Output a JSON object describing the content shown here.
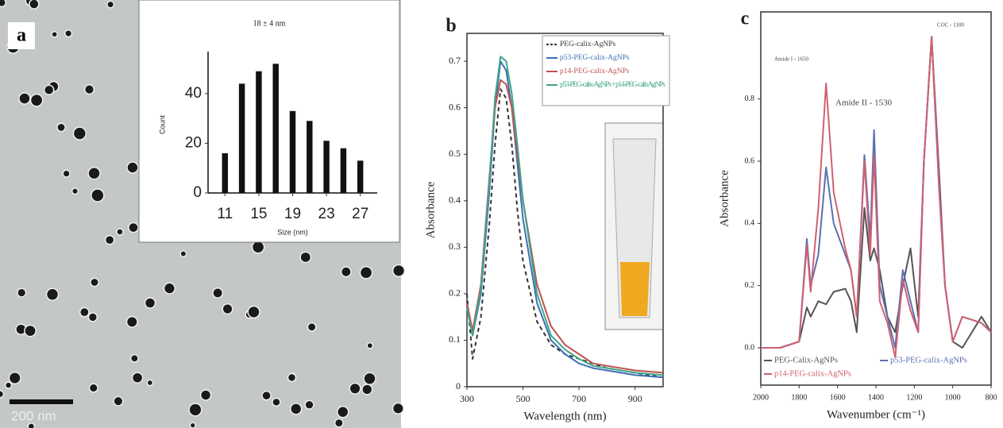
{
  "image": {
    "panel_label": "a",
    "scale_bar": "200 nm"
  },
  "chart_data": [
    {
      "type": "bar",
      "title": "18 ± 4 nm",
      "x": [
        11,
        13,
        15,
        17,
        19,
        21,
        23,
        25,
        27
      ],
      "values": [
        16,
        44,
        49,
        52,
        33,
        29,
        21,
        18,
        13
      ],
      "color": "#111111",
      "xlim": [
        9,
        29
      ],
      "xticks": [
        11,
        15,
        19,
        23,
        27
      ],
      "ylim": [
        0,
        55
      ],
      "yticks": [
        0,
        20,
        40
      ],
      "xlabel": "Size (nm)",
      "ylabel": "Count"
    },
    {
      "type": "line",
      "panel_label": "b",
      "x": [
        300,
        320,
        350,
        380,
        400,
        420,
        440,
        460,
        480,
        500,
        550,
        600,
        650,
        700,
        750,
        800,
        900,
        1000
      ],
      "series": [
        {
          "name": "PEG-calix-AgNPs",
          "color": "#333333",
          "style": "dashed",
          "values": [
            0.2,
            0.06,
            0.15,
            0.35,
            0.52,
            0.64,
            0.62,
            0.52,
            0.38,
            0.27,
            0.14,
            0.09,
            0.07,
            0.06,
            0.05,
            0.04,
            0.03,
            0.02
          ]
        },
        {
          "name": "p53-PEG-calix-AgNPs",
          "color": "#3d6fb5",
          "style": "solid",
          "values": [
            0.18,
            0.11,
            0.2,
            0.42,
            0.6,
            0.7,
            0.68,
            0.6,
            0.48,
            0.36,
            0.18,
            0.1,
            0.07,
            0.05,
            0.04,
            0.035,
            0.025,
            0.02
          ]
        },
        {
          "name": "p14-PEG-calix-AgNPs",
          "color": "#c0504d",
          "style": "solid",
          "values": [
            0.18,
            0.12,
            0.22,
            0.45,
            0.6,
            0.66,
            0.65,
            0.6,
            0.5,
            0.4,
            0.22,
            0.13,
            0.09,
            0.07,
            0.05,
            0.045,
            0.035,
            0.03
          ]
        },
        {
          "name": "p53-PEG-calix-AgNPs + p14-PEG-calixAgNPs",
          "color": "#3fa58a",
          "style": "solid",
          "values": [
            0.17,
            0.11,
            0.21,
            0.44,
            0.62,
            0.71,
            0.7,
            0.63,
            0.52,
            0.4,
            0.2,
            0.11,
            0.08,
            0.06,
            0.045,
            0.04,
            0.03,
            0.025
          ]
        }
      ],
      "xlim": [
        300,
        1000
      ],
      "xticks": [
        300,
        500,
        700,
        900
      ],
      "ylim": [
        0,
        0.76
      ],
      "yticks": [
        0,
        0.1,
        0.2,
        0.3,
        0.4,
        0.5,
        0.6,
        0.7
      ],
      "xlabel": "Wavelength (nm)",
      "ylabel": "Absorbance",
      "legend": "top-right"
    },
    {
      "type": "line",
      "panel_label": "c",
      "x": [
        2000,
        1900,
        1800,
        1760,
        1740,
        1700,
        1660,
        1620,
        1560,
        1530,
        1500,
        1460,
        1430,
        1410,
        1380,
        1340,
        1300,
        1260,
        1220,
        1180,
        1150,
        1110,
        1070,
        1040,
        1000,
        950,
        850,
        800
      ],
      "series": [
        {
          "name": "PEG-Calix-AgNPs",
          "color": "#555555",
          "values": [
            0,
            0,
            0.02,
            0.13,
            0.1,
            0.15,
            0.14,
            0.18,
            0.19,
            0.15,
            0.05,
            0.45,
            0.28,
            0.32,
            0.25,
            0.1,
            0.05,
            0.2,
            0.32,
            0.1,
            0.6,
            1.0,
            0.55,
            0.2,
            0.02,
            0,
            0.1,
            0.05
          ]
        },
        {
          "name": "p53-PEG-calix-AgNPs",
          "color": "#5b6fb0",
          "values": [
            0,
            0,
            0.02,
            0.35,
            0.2,
            0.3,
            0.58,
            0.4,
            0.3,
            0.25,
            0.1,
            0.62,
            0.35,
            0.7,
            0.2,
            0.1,
            0,
            0.25,
            0.15,
            0.05,
            0.6,
            1.0,
            0.5,
            0.2,
            0.02,
            0.1,
            0.08,
            0.05
          ]
        },
        {
          "name": "p14-PEG-calix-AgNPs",
          "color": "#d06070",
          "values": [
            0,
            0,
            0.02,
            0.33,
            0.18,
            0.45,
            0.85,
            0.5,
            0.32,
            0.25,
            0.1,
            0.6,
            0.3,
            0.62,
            0.15,
            0.08,
            -0.03,
            0.22,
            0.12,
            0.05,
            0.6,
            1.0,
            0.5,
            0.2,
            0.02,
            0.1,
            0.08,
            0.05
          ]
        }
      ],
      "xlim": [
        2000,
        800
      ],
      "xticks": [
        2000,
        1800,
        1600,
        1400,
        1200,
        1000,
        800
      ],
      "ylim": [
        -0.12,
        1.08
      ],
      "yticks": [
        {
          "value": 0,
          "label": "0.0"
        },
        0.2,
        0.4,
        0.6,
        0.8
      ],
      "annotations": [
        "Amide I - 1650",
        "Amide II - 1530",
        "COC - 1100"
      ],
      "xlabel": "Wavenumber (cm⁻¹)",
      "ylabel": "Absorbance",
      "legend": "bottom-left"
    }
  ]
}
